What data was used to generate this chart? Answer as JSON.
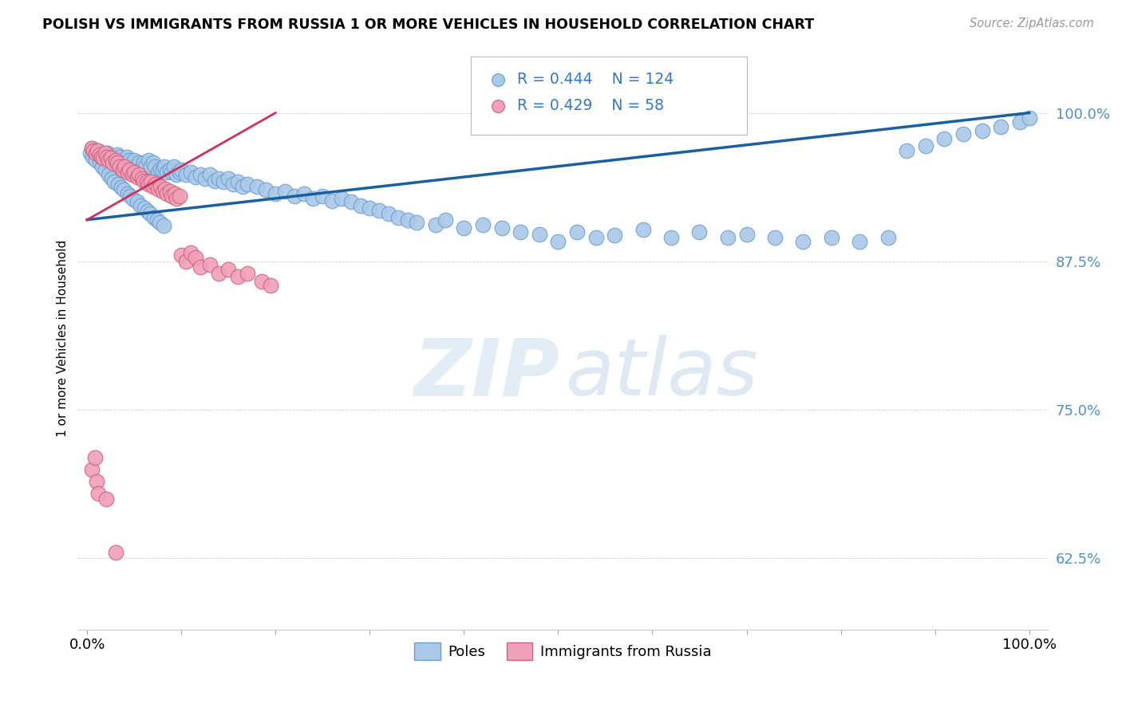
{
  "title": "POLISH VS IMMIGRANTS FROM RUSSIA 1 OR MORE VEHICLES IN HOUSEHOLD CORRELATION CHART",
  "source": "Source: ZipAtlas.com",
  "ylabel": "1 or more Vehicles in Household",
  "ytick_labels": [
    "62.5%",
    "75.0%",
    "87.5%",
    "100.0%"
  ],
  "ytick_values": [
    0.625,
    0.75,
    0.875,
    1.0
  ],
  "legend_poles": "Poles",
  "legend_russia": "Immigrants from Russia",
  "r_poles": 0.444,
  "n_poles": 124,
  "r_russia": 0.429,
  "n_russia": 58,
  "color_poles": "#aac8e8",
  "color_russia": "#f0a0b8",
  "color_poles_line": "#1a5fa0",
  "color_russia_line": "#d03060",
  "color_poles_edge": "#6a9fd0",
  "color_russia_edge": "#d06080",
  "poles_x": [
    0.005,
    0.008,
    0.01,
    0.012,
    0.015,
    0.018,
    0.02,
    0.022,
    0.025,
    0.028,
    0.03,
    0.032,
    0.035,
    0.038,
    0.04,
    0.042,
    0.045,
    0.048,
    0.05,
    0.052,
    0.055,
    0.058,
    0.06,
    0.062,
    0.065,
    0.068,
    0.07,
    0.072,
    0.075,
    0.078,
    0.08,
    0.082,
    0.085,
    0.088,
    0.09,
    0.092,
    0.095,
    0.098,
    0.1,
    0.105,
    0.11,
    0.115,
    0.12,
    0.125,
    0.13,
    0.135,
    0.14,
    0.145,
    0.15,
    0.155,
    0.16,
    0.165,
    0.17,
    0.18,
    0.19,
    0.2,
    0.21,
    0.22,
    0.23,
    0.24,
    0.25,
    0.26,
    0.27,
    0.28,
    0.29,
    0.3,
    0.31,
    0.32,
    0.33,
    0.34,
    0.35,
    0.37,
    0.38,
    0.4,
    0.42,
    0.44,
    0.46,
    0.48,
    0.5,
    0.52,
    0.54,
    0.56,
    0.59,
    0.62,
    0.65,
    0.68,
    0.7,
    0.73,
    0.76,
    0.79,
    0.82,
    0.85,
    0.87,
    0.89,
    0.91,
    0.93,
    0.95,
    0.97,
    0.99,
    1.0,
    0.003,
    0.006,
    0.009,
    0.013,
    0.016,
    0.019,
    0.023,
    0.026,
    0.029,
    0.033,
    0.036,
    0.039,
    0.043,
    0.046,
    0.049,
    0.053,
    0.057,
    0.061,
    0.064,
    0.067,
    0.071,
    0.074,
    0.077,
    0.081
  ],
  "poles_y": [
    0.97,
    0.968,
    0.966,
    0.968,
    0.965,
    0.965,
    0.962,
    0.966,
    0.963,
    0.96,
    0.96,
    0.965,
    0.963,
    0.96,
    0.958,
    0.963,
    0.96,
    0.958,
    0.96,
    0.955,
    0.958,
    0.955,
    0.958,
    0.955,
    0.96,
    0.955,
    0.958,
    0.955,
    0.95,
    0.953,
    0.952,
    0.955,
    0.95,
    0.952,
    0.95,
    0.955,
    0.948,
    0.95,
    0.952,
    0.948,
    0.95,
    0.946,
    0.948,
    0.945,
    0.948,
    0.943,
    0.945,
    0.942,
    0.945,
    0.94,
    0.942,
    0.938,
    0.94,
    0.938,
    0.935,
    0.932,
    0.934,
    0.93,
    0.932,
    0.928,
    0.93,
    0.926,
    0.928,
    0.925,
    0.922,
    0.92,
    0.918,
    0.915,
    0.912,
    0.91,
    0.908,
    0.906,
    0.91,
    0.903,
    0.906,
    0.903,
    0.9,
    0.898,
    0.892,
    0.9,
    0.895,
    0.897,
    0.902,
    0.895,
    0.9,
    0.895,
    0.898,
    0.895,
    0.892,
    0.895,
    0.892,
    0.895,
    0.968,
    0.972,
    0.978,
    0.982,
    0.985,
    0.988,
    0.992,
    0.996,
    0.966,
    0.963,
    0.96,
    0.958,
    0.955,
    0.952,
    0.948,
    0.945,
    0.942,
    0.94,
    0.937,
    0.935,
    0.932,
    0.93,
    0.927,
    0.925,
    0.922,
    0.92,
    0.917,
    0.915,
    0.912,
    0.91,
    0.908,
    0.905
  ],
  "russia_x": [
    0.005,
    0.007,
    0.009,
    0.011,
    0.013,
    0.015,
    0.017,
    0.019,
    0.021,
    0.023,
    0.025,
    0.027,
    0.03,
    0.032,
    0.035,
    0.038,
    0.04,
    0.043,
    0.045,
    0.048,
    0.05,
    0.053,
    0.055,
    0.058,
    0.06,
    0.063,
    0.065,
    0.068,
    0.07,
    0.073,
    0.075,
    0.078,
    0.08,
    0.083,
    0.085,
    0.088,
    0.09,
    0.093,
    0.095,
    0.098,
    0.1,
    0.105,
    0.11,
    0.115,
    0.12,
    0.13,
    0.14,
    0.15,
    0.16,
    0.17,
    0.185,
    0.195,
    0.005,
    0.01,
    0.008,
    0.012,
    0.02,
    0.03
  ],
  "russia_y": [
    0.97,
    0.968,
    0.966,
    0.968,
    0.965,
    0.963,
    0.962,
    0.966,
    0.963,
    0.96,
    0.962,
    0.958,
    0.96,
    0.958,
    0.955,
    0.952,
    0.955,
    0.95,
    0.952,
    0.948,
    0.95,
    0.946,
    0.948,
    0.945,
    0.943,
    0.942,
    0.94,
    0.942,
    0.938,
    0.94,
    0.936,
    0.938,
    0.934,
    0.936,
    0.932,
    0.934,
    0.93,
    0.932,
    0.928,
    0.93,
    0.88,
    0.875,
    0.882,
    0.878,
    0.87,
    0.872,
    0.865,
    0.868,
    0.862,
    0.865,
    0.858,
    0.855,
    0.7,
    0.69,
    0.71,
    0.68,
    0.675,
    0.63
  ]
}
